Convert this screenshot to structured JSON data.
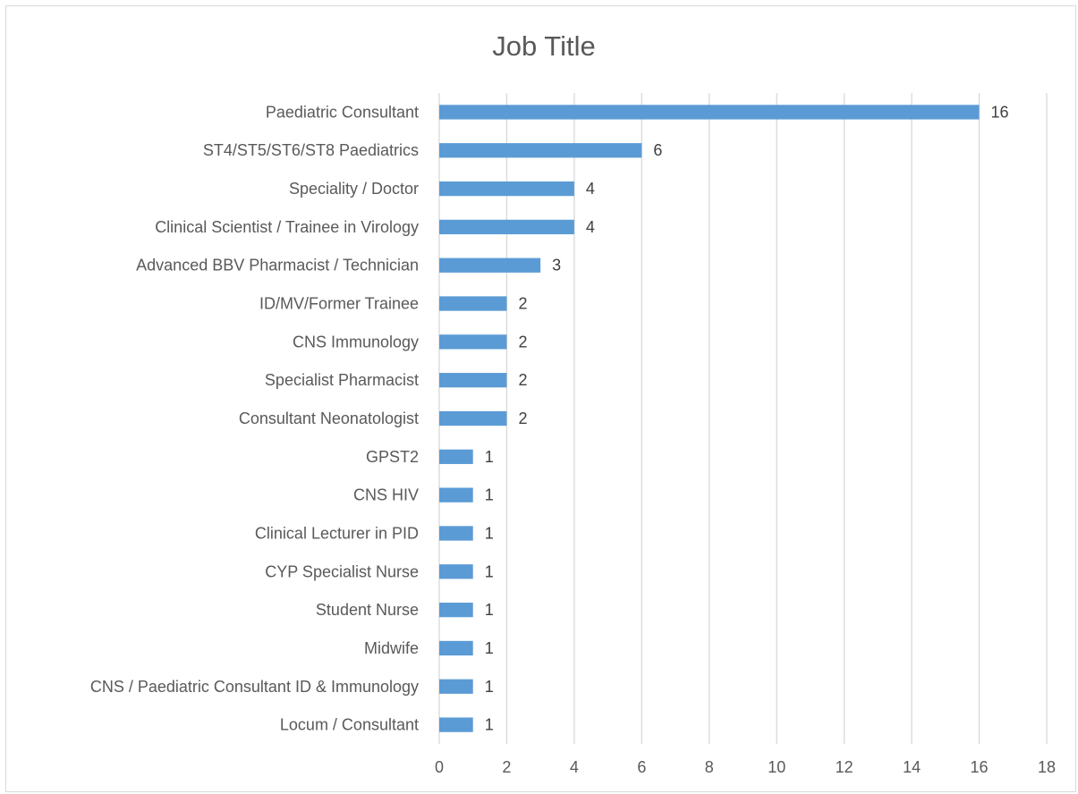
{
  "chart_data": {
    "type": "bar",
    "orientation": "horizontal",
    "title": "Job Title",
    "xlabel": "",
    "ylabel": "",
    "categories": [
      "Paediatric Consultant",
      "ST4/ST5/ST6/ST8 Paediatrics",
      "Speciality / Doctor",
      "Clinical Scientist / Trainee in Virology",
      "Advanced BBV Pharmacist / Technician",
      "ID/MV/Former Trainee",
      "CNS Immunology",
      "Specialist Pharmacist",
      "Consultant Neonatologist",
      "GPST2",
      "CNS HIV",
      "Clinical Lecturer in PID",
      "CYP Specialist Nurse",
      "Student Nurse",
      "Midwife",
      "CNS / Paediatric Consultant ID & Immunology",
      "Locum / Consultant"
    ],
    "values": [
      16,
      6,
      4,
      4,
      3,
      2,
      2,
      2,
      2,
      1,
      1,
      1,
      1,
      1,
      1,
      1,
      1
    ],
    "data_labels": [
      "16",
      "6",
      "4",
      "4",
      "3",
      "2",
      "2",
      "2",
      "2",
      "1",
      "1",
      "1",
      "1",
      "1",
      "1",
      "1",
      "1"
    ],
    "xlim": [
      0,
      18
    ],
    "x_ticks": [
      "0",
      "2",
      "4",
      "6",
      "8",
      "10",
      "12",
      "14",
      "16",
      "18"
    ],
    "grid": "vertical",
    "legend": "none",
    "bar_color": "#5b9bd5",
    "gridline_color": "#d9d9d9",
    "text_color": "#595959"
  }
}
